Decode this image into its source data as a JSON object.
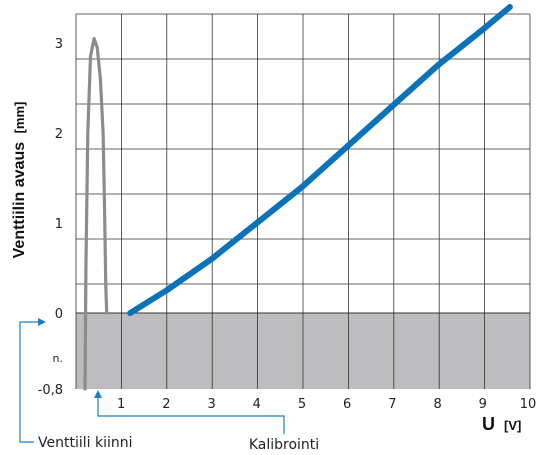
{
  "chart_data": {
    "type": "line",
    "title": "",
    "ylabel": "Venttiilin avaus",
    "ylabel_unit": "[mm]",
    "xlabel": "U",
    "xlabel_unit": "[V]",
    "xlim": [
      0,
      10
    ],
    "ylim": [
      -0.8,
      3.4
    ],
    "x_ticks": [
      "1",
      "2",
      "3",
      "4",
      "5",
      "6",
      "7",
      "8",
      "9",
      "10"
    ],
    "x_tick_values": [
      1,
      2,
      3,
      4,
      5,
      6,
      7,
      8,
      9,
      10
    ],
    "y_ticks": [
      "-0,8",
      "0",
      "1",
      "2",
      "3"
    ],
    "y_tick_values": [
      -0.8,
      0,
      1,
      2,
      3
    ],
    "y_extra_label": "n.",
    "grid": true,
    "shaded_region": {
      "y_from": -0.8,
      "y_to": 0,
      "color": "#bdbdbf"
    },
    "series": [
      {
        "color": "#0a72b8",
        "x": [
          1.2,
          2.0,
          3.0,
          4.0,
          5.0,
          6.0,
          7.0,
          8.0,
          9.0,
          9.6
        ],
        "y": [
          0.0,
          0.25,
          0.6,
          1.0,
          1.4,
          1.85,
          2.3,
          2.75,
          3.15,
          3.4
        ]
      },
      {
        "color": "#8c8c8c",
        "x": [
          0.2,
          0.22,
          0.26,
          0.32,
          0.4,
          0.47,
          0.54,
          0.6,
          0.63,
          0.66,
          0.68
        ],
        "y": [
          -0.8,
          0.5,
          2.0,
          2.85,
          3.05,
          2.95,
          2.6,
          2.0,
          1.2,
          0.3,
          0.0
        ]
      }
    ],
    "annotations": [
      {
        "text": "Venttiili kiinni",
        "points_to_y": 0
      },
      {
        "text": "Kalibrointi",
        "points_to_x": 0.55
      }
    ]
  }
}
